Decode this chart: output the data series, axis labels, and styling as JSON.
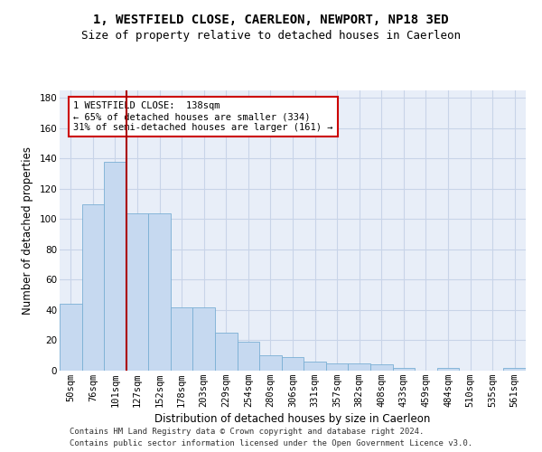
{
  "title1": "1, WESTFIELD CLOSE, CAERLEON, NEWPORT, NP18 3ED",
  "title2": "Size of property relative to detached houses in Caerleon",
  "xlabel": "Distribution of detached houses by size in Caerleon",
  "ylabel": "Number of detached properties",
  "footnote1": "Contains HM Land Registry data © Crown copyright and database right 2024.",
  "footnote2": "Contains public sector information licensed under the Open Government Licence v3.0.",
  "bar_labels": [
    "50sqm",
    "76sqm",
    "101sqm",
    "127sqm",
    "152sqm",
    "178sqm",
    "203sqm",
    "229sqm",
    "254sqm",
    "280sqm",
    "306sqm",
    "331sqm",
    "357sqm",
    "382sqm",
    "408sqm",
    "433sqm",
    "459sqm",
    "484sqm",
    "510sqm",
    "535sqm",
    "561sqm"
  ],
  "bar_values": [
    44,
    110,
    138,
    104,
    104,
    42,
    42,
    25,
    19,
    10,
    9,
    6,
    5,
    5,
    4,
    2,
    0,
    2,
    0,
    0,
    2
  ],
  "bar_color": "#c6d9f0",
  "bar_edge_color": "#7aafd4",
  "vline_x": 2.5,
  "vline_color": "#aa0000",
  "annotation_text": "1 WESTFIELD CLOSE:  138sqm\n← 65% of detached houses are smaller (334)\n31% of semi-detached houses are larger (161) →",
  "annotation_box_color": "#ffffff",
  "annotation_box_edge": "#cc0000",
  "ylim": [
    0,
    185
  ],
  "yticks": [
    0,
    20,
    40,
    60,
    80,
    100,
    120,
    140,
    160,
    180
  ],
  "grid_color": "#c8d4e8",
  "bg_color": "#e8eef8",
  "title1_fontsize": 10,
  "title2_fontsize": 9,
  "xlabel_fontsize": 8.5,
  "ylabel_fontsize": 8.5,
  "tick_fontsize": 7.5,
  "annotation_fontsize": 7.5,
  "footnote_fontsize": 6.5
}
